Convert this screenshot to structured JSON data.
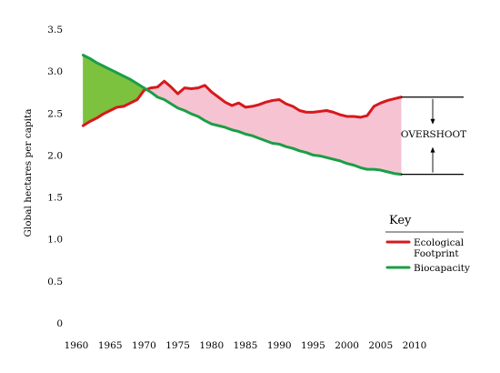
{
  "chart_data": {
    "type": "line",
    "title": "",
    "xlabel": "",
    "ylabel": "Global hectares per capita",
    "xlim": [
      1960,
      2010
    ],
    "ylim": [
      0,
      3.5
    ],
    "x_ticks": [
      1960,
      1965,
      1970,
      1975,
      1980,
      1985,
      1990,
      1995,
      2000,
      2005,
      2010
    ],
    "y_ticks": [
      "0",
      "0.5",
      "1.0",
      "1.5",
      "2.0",
      "2.5",
      "3.0",
      "3.5"
    ],
    "y_tick_values": [
      0,
      0.5,
      1.0,
      1.5,
      2.0,
      2.5,
      3.0,
      3.5
    ],
    "x": [
      1961,
      1962,
      1963,
      1964,
      1965,
      1966,
      1967,
      1968,
      1969,
      1970,
      1971,
      1972,
      1973,
      1974,
      1975,
      1976,
      1977,
      1978,
      1979,
      1980,
      1981,
      1982,
      1983,
      1984,
      1985,
      1986,
      1987,
      1988,
      1989,
      1990,
      1991,
      1992,
      1993,
      1994,
      1995,
      1996,
      1997,
      1998,
      1999,
      2000,
      2001,
      2002,
      2003,
      2004,
      2005,
      2006,
      2007,
      2008
    ],
    "series": [
      {
        "name": "Ecological Footprint",
        "color": "#d7191c",
        "values": [
          2.35,
          2.4,
          2.44,
          2.49,
          2.53,
          2.57,
          2.58,
          2.62,
          2.66,
          2.77,
          2.8,
          2.81,
          2.88,
          2.81,
          2.73,
          2.8,
          2.79,
          2.8,
          2.83,
          2.75,
          2.69,
          2.63,
          2.59,
          2.62,
          2.57,
          2.58,
          2.6,
          2.63,
          2.65,
          2.66,
          2.61,
          2.58,
          2.53,
          2.51,
          2.51,
          2.52,
          2.53,
          2.51,
          2.48,
          2.46,
          2.46,
          2.45,
          2.47,
          2.58,
          2.62,
          2.65,
          2.67,
          2.69
        ]
      },
      {
        "name": "Biocapacity",
        "color": "#1a9e46",
        "values": [
          3.19,
          3.15,
          3.1,
          3.06,
          3.02,
          2.98,
          2.94,
          2.9,
          2.85,
          2.8,
          2.75,
          2.69,
          2.66,
          2.61,
          2.56,
          2.53,
          2.49,
          2.46,
          2.41,
          2.37,
          2.35,
          2.33,
          2.3,
          2.28,
          2.25,
          2.23,
          2.2,
          2.17,
          2.14,
          2.13,
          2.1,
          2.08,
          2.05,
          2.03,
          2.0,
          1.99,
          1.97,
          1.95,
          1.93,
          1.9,
          1.88,
          1.85,
          1.83,
          1.83,
          1.82,
          1.8,
          1.78,
          1.77
        ]
      }
    ],
    "fill_colors": {
      "biocapacity_reserve": "#7cc23f",
      "overshoot": "#f6c3d3"
    },
    "annotation": {
      "text": "OVERSHOOT",
      "year": 2008,
      "top_value": 2.69,
      "bottom_value": 1.77
    },
    "legend": {
      "title": "Key",
      "placement": "right",
      "entries": [
        {
          "lines": [
            "Ecological",
            "Footprint"
          ],
          "color": "#d7191c"
        },
        {
          "lines": [
            "Biocapacity"
          ],
          "color": "#1a9e46"
        }
      ]
    },
    "grid": false
  }
}
